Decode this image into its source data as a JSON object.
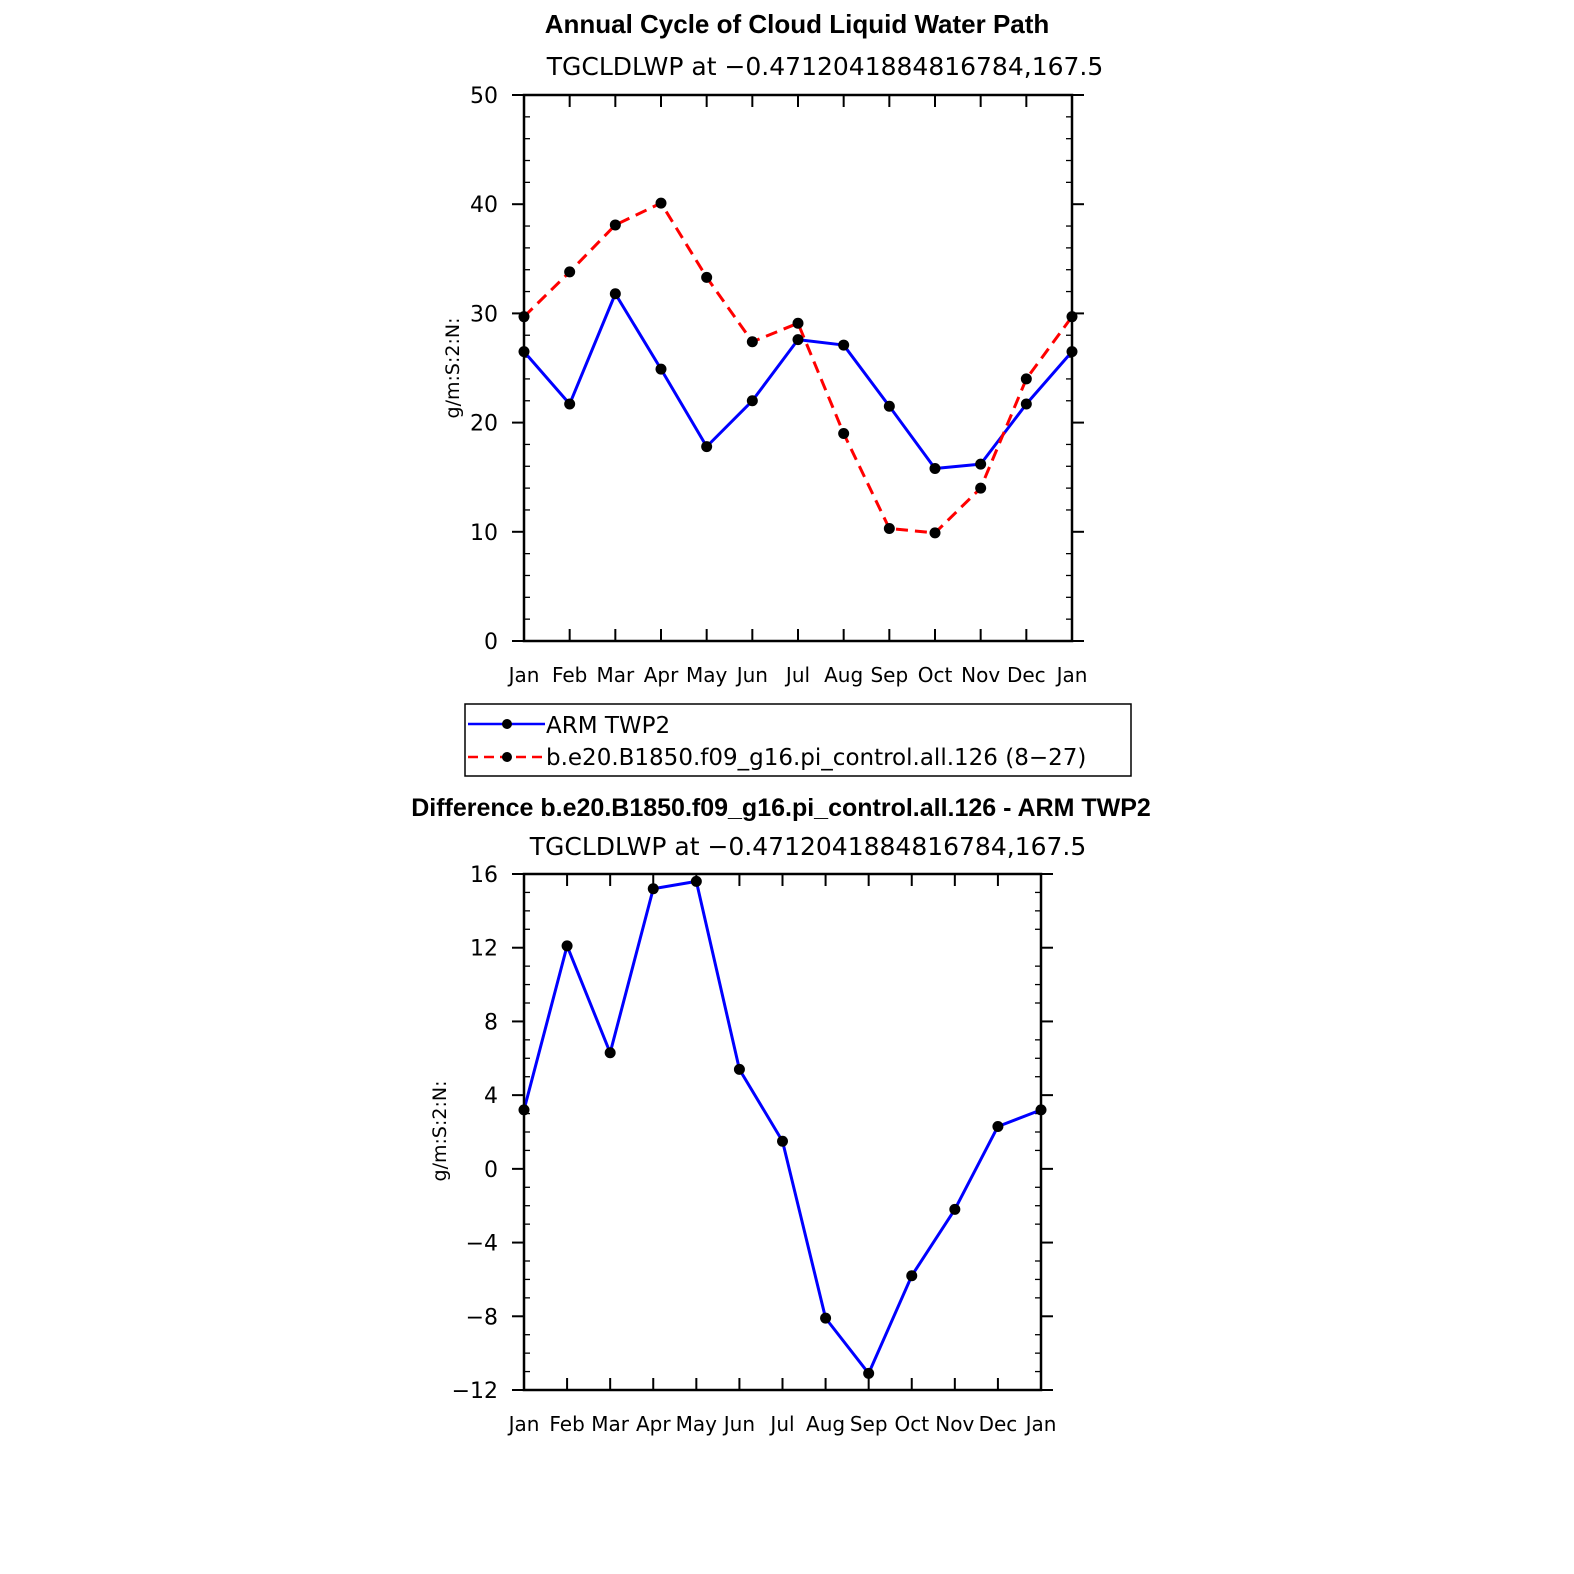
{
  "chart_data": [
    {
      "type": "line",
      "title": "Annual Cycle of Cloud Liquid Water Path",
      "subtitle": "TGCLDLWP at −0.4712041884816784,167.5",
      "ylabel": "g/m:S:2:N:",
      "xlabel": "",
      "categories": [
        "Jan",
        "Feb",
        "Mar",
        "Apr",
        "May",
        "Jun",
        "Jul",
        "Aug",
        "Sep",
        "Oct",
        "Nov",
        "Dec",
        "Jan"
      ],
      "ylim": [
        0,
        50
      ],
      "yticks": [
        "0",
        "10",
        "20",
        "30",
        "40",
        "50"
      ],
      "series": [
        {
          "name": "ARM TWP2",
          "color": "#0000ff",
          "dash": "solid",
          "values": [
            26.5,
            21.7,
            31.8,
            24.9,
            17.8,
            22.0,
            27.6,
            27.1,
            21.5,
            15.8,
            16.2,
            21.7,
            26.5
          ]
        },
        {
          "name": "b.e20.B1850.f09_g16.pi_control.all.126 (8−27)",
          "color": "#ff0000",
          "dash": "dashed",
          "values": [
            29.7,
            33.8,
            38.1,
            40.1,
            33.3,
            27.4,
            29.1,
            19.0,
            10.3,
            9.9,
            14.0,
            24.0,
            29.7
          ]
        }
      ],
      "legend": "below"
    },
    {
      "type": "line",
      "title": "Difference b.e20.B1850.f09_g16.pi_control.all.126 - ARM TWP2",
      "subtitle": "TGCLDLWP at −0.4712041884816784,167.5",
      "ylabel": "g/m:S:2:N:",
      "xlabel": "",
      "categories": [
        "Jan",
        "Feb",
        "Mar",
        "Apr",
        "May",
        "Jun",
        "Jul",
        "Aug",
        "Sep",
        "Oct",
        "Nov",
        "Dec",
        "Jan"
      ],
      "ylim": [
        -12,
        16
      ],
      "yticks": [
        "−12",
        "−8",
        "−4",
        "0",
        "4",
        "8",
        "12",
        "16"
      ],
      "series": [
        {
          "color": "#0000ff",
          "dash": "solid",
          "values": [
            3.2,
            12.1,
            6.3,
            15.2,
            15.6,
            5.4,
            1.5,
            -8.1,
            -11.1,
            -5.8,
            -2.2,
            2.3,
            3.2
          ]
        }
      ]
    }
  ]
}
